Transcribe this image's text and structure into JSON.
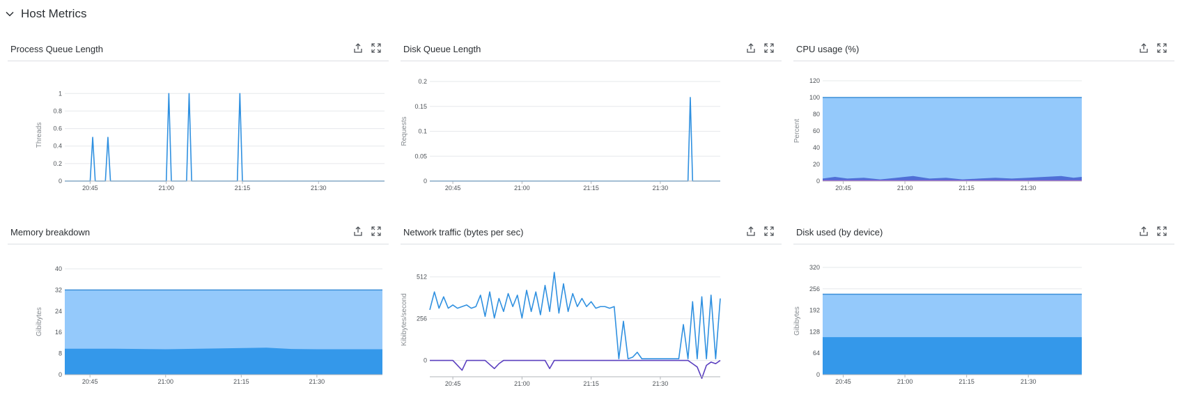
{
  "section": {
    "title": "Host Metrics"
  },
  "panels": [
    {
      "title": "Process Queue Length",
      "actions": [
        "export-icon",
        "expand-icon"
      ]
    },
    {
      "title": "Disk Queue Length",
      "actions": [
        "export-icon",
        "expand-icon"
      ]
    },
    {
      "title": "CPU usage (%)",
      "actions": [
        "export-icon",
        "expand-icon"
      ]
    },
    {
      "title": "Memory breakdown",
      "actions": [
        "export-icon",
        "expand-icon"
      ]
    },
    {
      "title": "Network traffic (bytes per sec)",
      "actions": [
        "export-icon",
        "expand-icon"
      ]
    },
    {
      "title": "Disk used (by device)",
      "actions": [
        "export-icon",
        "expand-icon"
      ]
    }
  ],
  "chart_data": [
    {
      "type": "line",
      "title": "Process Queue Length",
      "ylabel": "Threads",
      "xlabel": "",
      "x_ticks": [
        "20:45",
        "21:00",
        "21:15",
        "21:30"
      ],
      "y_ticks": [
        "0",
        "0.2",
        "0.4",
        "0.6",
        "0.8",
        "1"
      ],
      "ylim": [
        0,
        1.05
      ],
      "xlim": [
        "20:40",
        "21:43"
      ],
      "series": [
        {
          "color": "#2f90e0",
          "x": [
            "20:40",
            "20:44",
            "20:45",
            "20:45.5",
            "20:46",
            "20:47",
            "20:48",
            "20:48.5",
            "20:49",
            "20:55",
            "20:59",
            "21:00",
            "21:00.5",
            "21:01",
            "21:03",
            "21:04",
            "21:04.5",
            "21:05",
            "21:09",
            "21:13",
            "21:14",
            "21:14.5",
            "21:15",
            "21:43"
          ],
          "y": [
            0,
            0,
            0,
            0.5,
            0,
            0,
            0,
            0.5,
            0,
            0,
            0,
            0,
            1,
            0,
            0,
            0,
            1,
            0,
            0,
            0,
            0,
            1,
            0,
            0
          ]
        }
      ]
    },
    {
      "type": "line",
      "title": "Disk Queue Length",
      "ylabel": "Requests",
      "xlabel": "",
      "x_ticks": [
        "20:45",
        "21:00",
        "21:15",
        "21:30"
      ],
      "y_ticks": [
        "0",
        "0.05",
        "0.1",
        "0.15",
        "0.2"
      ],
      "ylim": [
        0,
        0.2
      ],
      "xlim": [
        "20:40",
        "21:43"
      ],
      "series": [
        {
          "color": "#2f90e0",
          "x": [
            "20:40",
            "21:36",
            "21:36.5",
            "21:37",
            "21:43"
          ],
          "y": [
            0,
            0,
            0.168,
            0,
            0
          ]
        }
      ]
    },
    {
      "type": "area",
      "title": "CPU usage (%)",
      "ylabel": "Percent",
      "xlabel": "",
      "x_ticks": [
        "20:45",
        "21:00",
        "21:15",
        "21:30"
      ],
      "y_ticks": [
        "0",
        "20",
        "40",
        "60",
        "80",
        "100",
        "120"
      ],
      "ylim": [
        0,
        120
      ],
      "xlim": [
        "20:40",
        "21:43"
      ],
      "series": [
        {
          "name": "",
          "color": "#94c9fb",
          "x": [
            "20:40",
            "21:43"
          ],
          "y": [
            100,
            100
          ]
        },
        {
          "name": "",
          "color": "#4f6fd6",
          "x": [
            "20:40",
            "20:43",
            "20:46",
            "20:50",
            "20:54",
            "20:58",
            "21:02",
            "21:06",
            "21:10",
            "21:14",
            "21:18",
            "21:22",
            "21:26",
            "21:30",
            "21:34",
            "21:38",
            "21:41",
            "21:43"
          ],
          "y": [
            3,
            5,
            3,
            4,
            2,
            4,
            6,
            3,
            4,
            2,
            3,
            4,
            3,
            4,
            5,
            6,
            4,
            5
          ]
        },
        {
          "name": "",
          "color": "#a44ad1",
          "x": [
            "20:40",
            "21:43"
          ],
          "y": [
            1,
            1
          ]
        }
      ]
    },
    {
      "type": "area",
      "title": "Memory breakdown",
      "ylabel": "Gibibytes",
      "xlabel": "",
      "x_ticks": [
        "20:45",
        "21:00",
        "21:15",
        "21:30"
      ],
      "y_ticks": [
        "0",
        "8",
        "16",
        "24",
        "32",
        "40"
      ],
      "ylim": [
        0,
        40
      ],
      "xlim": [
        "20:40",
        "21:43"
      ],
      "series": [
        {
          "name": "",
          "color": "#94c9fb",
          "x": [
            "20:40",
            "21:43"
          ],
          "y": [
            32,
            32
          ]
        },
        {
          "name": "",
          "color": "#3498ea",
          "x": [
            "20:40",
            "20:50",
            "21:00",
            "21:10",
            "21:20",
            "21:25",
            "21:30",
            "21:43"
          ],
          "y": [
            9.8,
            9.8,
            9.6,
            9.9,
            10.2,
            9.7,
            9.6,
            9.6
          ]
        }
      ]
    },
    {
      "type": "line",
      "title": "Network traffic (bytes per sec)",
      "ylabel": "Kibibytes/second",
      "xlabel": "",
      "x_ticks": [
        "20:45",
        "21:00",
        "21:15",
        "21:30"
      ],
      "y_ticks": [
        "0",
        "256",
        "512"
      ],
      "ylim": [
        -100,
        600
      ],
      "xlim": [
        "20:40",
        "21:43"
      ],
      "series": [
        {
          "name": "",
          "color": "#2f90e0",
          "x": [
            "20:40",
            "20:41",
            "20:42",
            "20:43",
            "20:44",
            "20:45",
            "20:46",
            "20:47",
            "20:48",
            "20:49",
            "20:50",
            "20:51",
            "20:52",
            "20:53",
            "20:54",
            "20:55",
            "20:56",
            "20:57",
            "20:58",
            "20:59",
            "21:00",
            "21:01",
            "21:02",
            "21:03",
            "21:04",
            "21:05",
            "21:06",
            "21:07",
            "21:08",
            "21:09",
            "21:10",
            "21:11",
            "21:12",
            "21:13",
            "21:14",
            "21:15",
            "21:16",
            "21:17",
            "21:18",
            "21:19",
            "21:20",
            "21:21",
            "21:22",
            "21:23",
            "21:24",
            "21:25",
            "21:26",
            "21:27",
            "21:28",
            "21:29",
            "21:30",
            "21:31",
            "21:32",
            "21:33",
            "21:34",
            "21:35",
            "21:36",
            "21:37",
            "21:38",
            "21:39",
            "21:40",
            "21:41",
            "21:42",
            "21:43"
          ],
          "y": [
            310,
            420,
            320,
            390,
            320,
            340,
            320,
            330,
            340,
            320,
            330,
            400,
            270,
            420,
            260,
            380,
            300,
            410,
            330,
            400,
            260,
            430,
            300,
            420,
            280,
            460,
            300,
            540,
            290,
            470,
            300,
            410,
            330,
            380,
            330,
            360,
            320,
            330,
            330,
            320,
            330,
            10,
            240,
            10,
            20,
            50,
            10,
            10,
            10,
            10,
            10,
            10,
            10,
            10,
            10,
            220,
            10,
            360,
            10,
            390,
            10,
            400,
            10,
            380
          ]
        },
        {
          "name": "",
          "color": "#5a3fbf",
          "x": [
            "20:40",
            "20:45",
            "20:46",
            "20:47",
            "20:48",
            "20:52",
            "20:54",
            "20:55",
            "20:56",
            "21:00",
            "21:05",
            "21:06",
            "21:07",
            "21:10",
            "21:15",
            "21:20",
            "21:25",
            "21:30",
            "21:36",
            "21:37",
            "21:38",
            "21:39",
            "21:40",
            "21:41",
            "21:42",
            "21:43"
          ],
          "y": [
            0,
            0,
            -30,
            -60,
            0,
            0,
            -50,
            -20,
            0,
            0,
            0,
            -50,
            0,
            0,
            0,
            0,
            0,
            0,
            0,
            -20,
            -40,
            -110,
            -30,
            -10,
            -20,
            0
          ]
        }
      ]
    },
    {
      "type": "area",
      "title": "Disk used (by device)",
      "ylabel": "Gibibytes",
      "xlabel": "",
      "x_ticks": [
        "20:45",
        "21:00",
        "21:15",
        "21:30"
      ],
      "y_ticks": [
        "0",
        "64",
        "128",
        "192",
        "256",
        "320"
      ],
      "ylim": [
        0,
        320
      ],
      "xlim": [
        "20:40",
        "21:43"
      ],
      "series": [
        {
          "name": "",
          "color": "#94c9fb",
          "x": [
            "20:40",
            "21:43"
          ],
          "y": [
            240,
            240
          ]
        },
        {
          "name": "",
          "color": "#3498ea",
          "x": [
            "20:40",
            "21:43"
          ],
          "y": [
            112,
            112
          ]
        }
      ]
    }
  ]
}
